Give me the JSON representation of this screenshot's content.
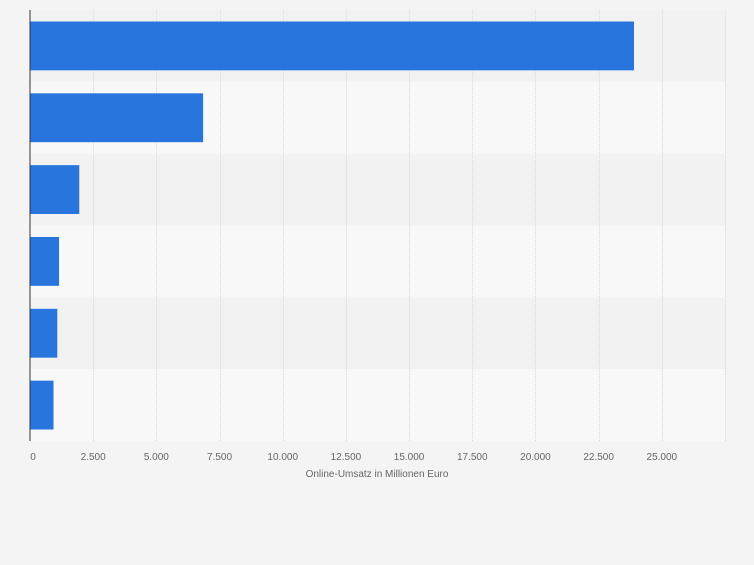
{
  "chart_data": {
    "type": "bar",
    "orientation": "horizontal",
    "categories": [
      "",
      "",
      "",
      "",
      "",
      ""
    ],
    "values": [
      23900,
      6850,
      1950,
      1150,
      1080,
      930
    ],
    "title": "",
    "xlabel": "Online-Umsatz in Millionen Euro",
    "ylabel": "",
    "xlim": [
      0,
      27500
    ],
    "ticks": [
      0,
      2500,
      5000,
      7500,
      10000,
      12500,
      15000,
      17500,
      20000,
      22500,
      25000
    ],
    "tick_labels": [
      "0",
      "2.500",
      "5.000",
      "7.500",
      "10.000",
      "12.500",
      "15.000",
      "17.500",
      "20.000",
      "22.500",
      "25.000"
    ],
    "grid": true,
    "bar_color": "#2876dd",
    "band_colors": [
      "#f2f2f2",
      "#f8f8f8"
    ],
    "background": "#f4f4f4"
  }
}
